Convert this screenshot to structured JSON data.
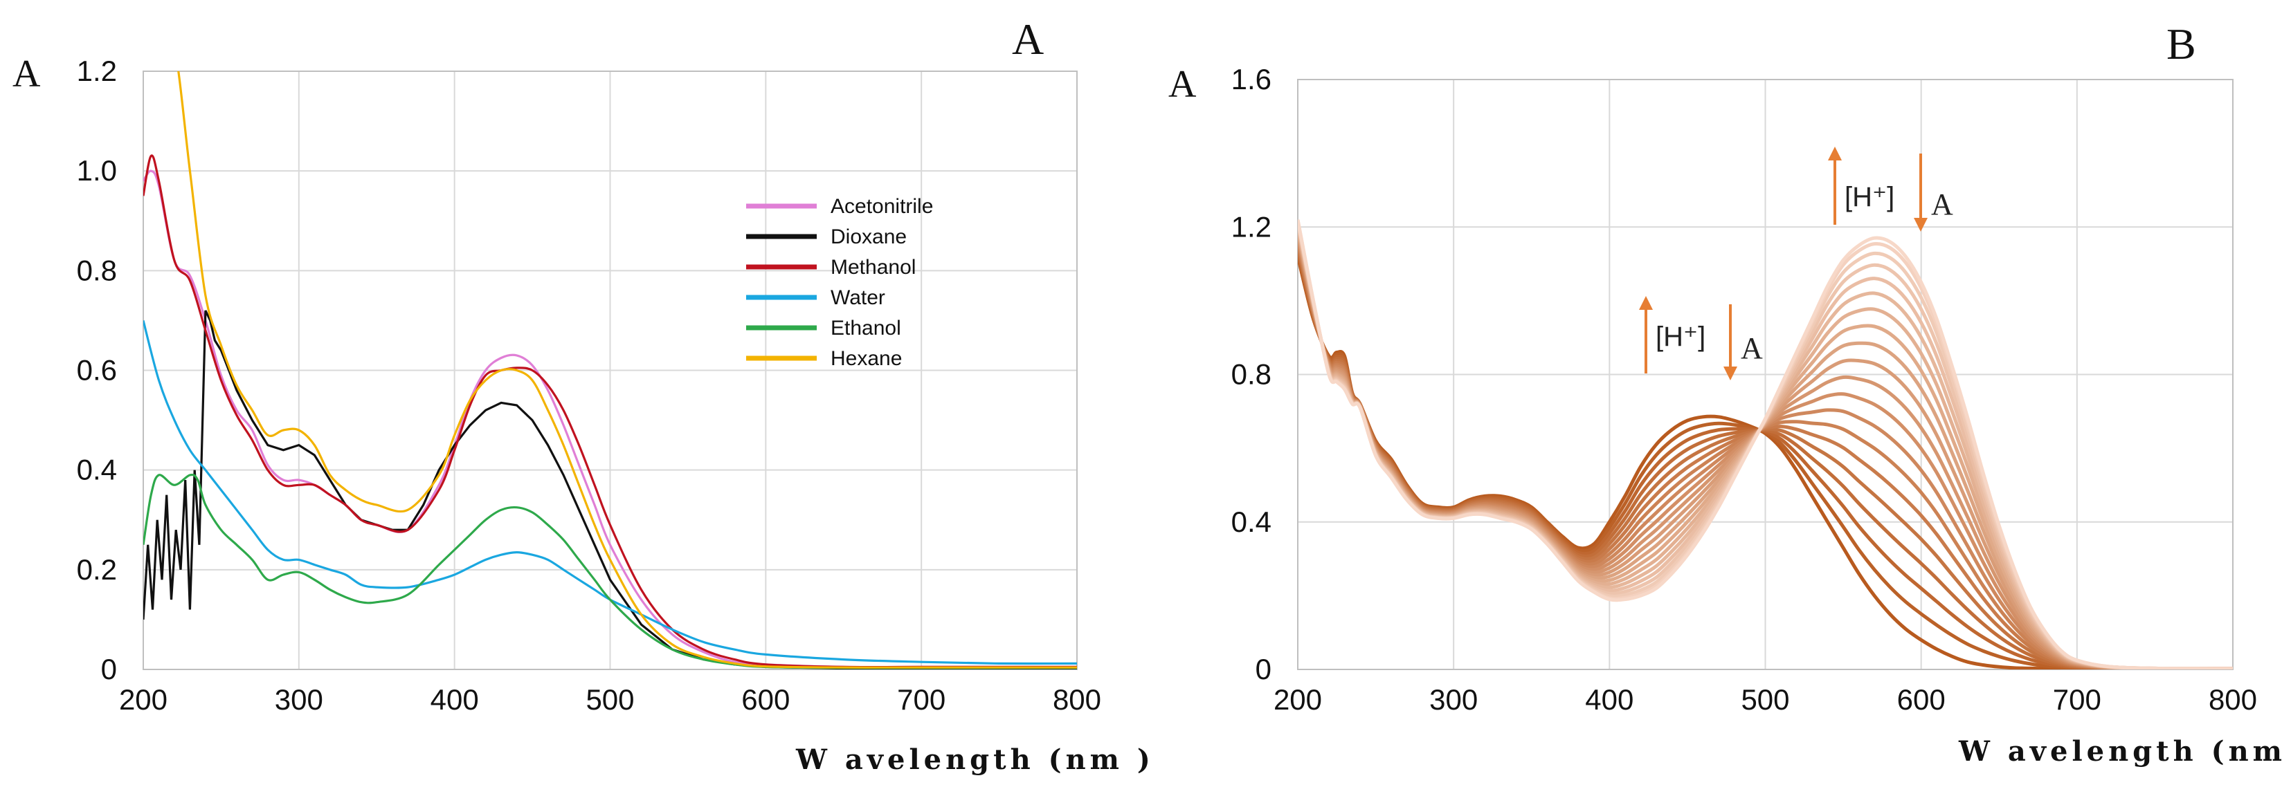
{
  "chart_data": [
    {
      "type": "line",
      "panel_label": "A",
      "ylabel": "A",
      "xlabel": "W avelength (nm )",
      "xlim": [
        200,
        800
      ],
      "ylim": [
        0,
        1.2
      ],
      "xticks": [
        200,
        300,
        400,
        500,
        600,
        700,
        800
      ],
      "yticks": [
        0,
        0.2,
        0.4,
        0.6,
        0.8,
        1.0,
        1.2
      ],
      "ytick_labels": [
        "0",
        "0.2",
        "0.4",
        "0.6",
        "0.8",
        "1.0",
        "1.2"
      ],
      "grid": true,
      "legend_position": "top-right",
      "series": [
        {
          "name": "Acetonitrile",
          "color": "#e07fd6",
          "x": [
            200,
            205,
            210,
            220,
            230,
            240,
            250,
            260,
            270,
            280,
            290,
            300,
            310,
            320,
            330,
            340,
            350,
            370,
            390,
            400,
            410,
            420,
            430,
            440,
            450,
            460,
            470,
            480,
            490,
            500,
            520,
            540,
            560,
            580,
            600,
            650,
            700,
            800
          ],
          "y": [
            0.98,
            1.0,
            0.97,
            0.82,
            0.79,
            0.7,
            0.59,
            0.52,
            0.48,
            0.41,
            0.38,
            0.38,
            0.37,
            0.35,
            0.33,
            0.3,
            0.29,
            0.28,
            0.37,
            0.45,
            0.54,
            0.6,
            0.625,
            0.63,
            0.61,
            0.56,
            0.49,
            0.41,
            0.33,
            0.25,
            0.14,
            0.07,
            0.035,
            0.015,
            0.01,
            0.005,
            0.005,
            0.005
          ]
        },
        {
          "name": "Dioxane",
          "color": "#111111",
          "x": [
            200,
            203,
            206,
            209,
            212,
            215,
            218,
            221,
            224,
            227,
            230,
            233,
            236,
            240,
            243,
            246,
            250,
            255,
            260,
            270,
            280,
            290,
            300,
            310,
            320,
            330,
            340,
            350,
            360,
            370,
            380,
            390,
            400,
            410,
            420,
            430,
            440,
            450,
            460,
            470,
            480,
            490,
            500,
            520,
            540,
            560,
            580,
            600,
            650,
            700,
            800
          ],
          "y": [
            0.1,
            0.25,
            0.12,
            0.3,
            0.18,
            0.35,
            0.14,
            0.28,
            0.2,
            0.38,
            0.12,
            0.4,
            0.25,
            0.72,
            0.7,
            0.66,
            0.64,
            0.6,
            0.56,
            0.5,
            0.45,
            0.44,
            0.45,
            0.43,
            0.38,
            0.33,
            0.3,
            0.29,
            0.28,
            0.28,
            0.33,
            0.4,
            0.45,
            0.49,
            0.52,
            0.535,
            0.53,
            0.5,
            0.45,
            0.39,
            0.32,
            0.25,
            0.18,
            0.09,
            0.04,
            0.02,
            0.01,
            0.005,
            0.002,
            0.002,
            0.002
          ]
        },
        {
          "name": "Methanol",
          "color": "#c0121f",
          "x": [
            200,
            205,
            210,
            220,
            230,
            240,
            250,
            260,
            270,
            280,
            290,
            300,
            310,
            320,
            330,
            340,
            350,
            370,
            390,
            400,
            410,
            420,
            430,
            440,
            450,
            460,
            470,
            480,
            490,
            500,
            520,
            540,
            560,
            580,
            600,
            650,
            700,
            800
          ],
          "y": [
            0.95,
            1.03,
            0.98,
            0.82,
            0.78,
            0.68,
            0.58,
            0.51,
            0.46,
            0.4,
            0.37,
            0.37,
            0.37,
            0.35,
            0.33,
            0.3,
            0.29,
            0.28,
            0.36,
            0.44,
            0.53,
            0.59,
            0.6,
            0.605,
            0.6,
            0.57,
            0.52,
            0.45,
            0.37,
            0.29,
            0.16,
            0.08,
            0.04,
            0.02,
            0.01,
            0.005,
            0.005,
            0.005
          ]
        },
        {
          "name": "Water",
          "color": "#1aa7e0",
          "x": [
            200,
            210,
            220,
            230,
            240,
            250,
            260,
            270,
            280,
            290,
            300,
            310,
            320,
            330,
            340,
            350,
            370,
            390,
            400,
            410,
            420,
            430,
            440,
            450,
            460,
            470,
            480,
            490,
            500,
            520,
            540,
            560,
            580,
            600,
            650,
            700,
            750,
            800
          ],
          "y": [
            0.7,
            0.58,
            0.5,
            0.44,
            0.4,
            0.36,
            0.32,
            0.28,
            0.24,
            0.22,
            0.22,
            0.21,
            0.2,
            0.19,
            0.17,
            0.165,
            0.165,
            0.18,
            0.19,
            0.205,
            0.22,
            0.23,
            0.235,
            0.23,
            0.22,
            0.2,
            0.18,
            0.16,
            0.14,
            0.11,
            0.08,
            0.055,
            0.04,
            0.03,
            0.02,
            0.015,
            0.012,
            0.012
          ]
        },
        {
          "name": "Ethanol",
          "color": "#2ea94b",
          "x": [
            200,
            205,
            210,
            220,
            230,
            235,
            240,
            250,
            260,
            270,
            280,
            290,
            300,
            310,
            320,
            330,
            340,
            350,
            370,
            390,
            400,
            410,
            420,
            430,
            440,
            450,
            460,
            470,
            480,
            490,
            500,
            520,
            540,
            560,
            580,
            600,
            650,
            800
          ],
          "y": [
            0.25,
            0.35,
            0.39,
            0.37,
            0.39,
            0.38,
            0.33,
            0.28,
            0.25,
            0.22,
            0.18,
            0.19,
            0.195,
            0.18,
            0.16,
            0.145,
            0.135,
            0.135,
            0.15,
            0.21,
            0.24,
            0.27,
            0.3,
            0.32,
            0.325,
            0.315,
            0.29,
            0.26,
            0.22,
            0.18,
            0.14,
            0.08,
            0.04,
            0.02,
            0.01,
            0.005,
            0.003,
            0.003
          ]
        },
        {
          "name": "Hexane",
          "color": "#f3b300",
          "x": [
            200,
            210,
            220,
            230,
            240,
            250,
            260,
            270,
            280,
            290,
            300,
            310,
            320,
            330,
            340,
            350,
            370,
            390,
            400,
            410,
            420,
            430,
            440,
            450,
            460,
            470,
            480,
            490,
            500,
            520,
            540,
            560,
            580,
            600,
            650,
            700,
            800
          ],
          "y": [
            1.35,
            1.3,
            1.25,
            1.0,
            0.75,
            0.65,
            0.57,
            0.52,
            0.47,
            0.48,
            0.48,
            0.45,
            0.39,
            0.36,
            0.34,
            0.33,
            0.32,
            0.39,
            0.47,
            0.54,
            0.58,
            0.6,
            0.6,
            0.58,
            0.52,
            0.45,
            0.37,
            0.29,
            0.22,
            0.11,
            0.05,
            0.025,
            0.012,
            0.006,
            0.004,
            0.004,
            0.004
          ]
        }
      ],
      "legend": [
        "Acetonitrile",
        "Dioxane",
        "Methanol",
        "Water",
        "Ethanol",
        "Hexane"
      ]
    },
    {
      "type": "line",
      "panel_label": "B",
      "ylabel": "A",
      "xlabel": "W avelength (nm )",
      "xlim": [
        200,
        800
      ],
      "ylim": [
        0,
        1.6
      ],
      "xticks": [
        200,
        300,
        400,
        500,
        600,
        700,
        800
      ],
      "yticks": [
        0,
        0.4,
        0.8,
        1.2,
        1.6
      ],
      "ytick_labels": [
        "0",
        "0.4",
        "0.8",
        "1.2",
        "1.6"
      ],
      "grid": true,
      "color_start": "#b85a1e",
      "color_end": "#f7d8c8",
      "family": {
        "description": "Absorbance spectra with increasing [H+] (first = lowest acid)",
        "first_max_at_470nm": 0.685,
        "last_max_at_572nm": 1.17,
        "isosbestic_point": {
          "x": 505,
          "y": 0.66
        },
        "curve_count": 20,
        "x": [
          200,
          210,
          220,
          225,
          230,
          235,
          240,
          250,
          260,
          270,
          280,
          290,
          300,
          310,
          320,
          330,
          340,
          350,
          360,
          370,
          380,
          390,
          400,
          410,
          420,
          430,
          440,
          450,
          460,
          470,
          480,
          490,
          500,
          510,
          520,
          530,
          540,
          550,
          560,
          570,
          580,
          590,
          600,
          610,
          620,
          630,
          640,
          650,
          660,
          670,
          680,
          690,
          700,
          720,
          750,
          800
        ],
        "y_first": [
          1.12,
          0.95,
          0.85,
          0.86,
          0.85,
          0.75,
          0.72,
          0.62,
          0.57,
          0.5,
          0.45,
          0.44,
          0.44,
          0.46,
          0.47,
          0.47,
          0.46,
          0.44,
          0.4,
          0.36,
          0.33,
          0.34,
          0.4,
          0.47,
          0.55,
          0.61,
          0.65,
          0.675,
          0.685,
          0.685,
          0.675,
          0.66,
          0.64,
          0.6,
          0.54,
          0.47,
          0.4,
          0.33,
          0.26,
          0.2,
          0.15,
          0.11,
          0.08,
          0.055,
          0.035,
          0.02,
          0.012,
          0.007,
          0.004,
          0.003,
          0.002,
          0.002,
          0.002,
          0.002,
          0.002,
          0.002
        ],
        "y_last": [
          1.22,
          1.0,
          0.8,
          0.78,
          0.76,
          0.72,
          0.71,
          0.58,
          0.52,
          0.46,
          0.42,
          0.41,
          0.41,
          0.42,
          0.42,
          0.41,
          0.4,
          0.38,
          0.34,
          0.29,
          0.24,
          0.21,
          0.19,
          0.19,
          0.2,
          0.22,
          0.26,
          0.31,
          0.37,
          0.44,
          0.52,
          0.6,
          0.68,
          0.77,
          0.86,
          0.95,
          1.04,
          1.11,
          1.15,
          1.17,
          1.16,
          1.12,
          1.05,
          0.95,
          0.82,
          0.68,
          0.53,
          0.39,
          0.27,
          0.17,
          0.1,
          0.05,
          0.025,
          0.008,
          0.003,
          0.002
        ]
      },
      "annotations": [
        {
          "text": "[H⁺]",
          "letter": "A",
          "near": {
            "x": 450,
            "y": 0.85
          }
        },
        {
          "text": "[H⁺]",
          "letter": "A",
          "near": {
            "x": 570,
            "y": 1.25
          }
        }
      ]
    }
  ]
}
